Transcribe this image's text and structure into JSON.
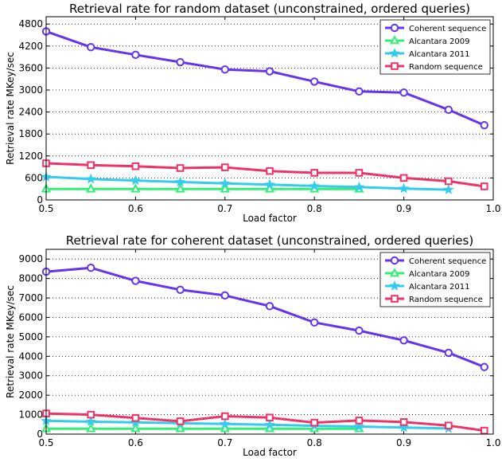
{
  "chart_data": [
    {
      "type": "line",
      "title": "Retrieval rate for random dataset (unconstrained, ordered queries)",
      "xlabel": "Load factor",
      "ylabel": "Retrieval rate MKey/sec",
      "xlim": [
        0.5,
        1.0
      ],
      "ylim": [
        0,
        5000
      ],
      "xticks": [
        0.5,
        0.6,
        0.7,
        0.8,
        0.9,
        1.0
      ],
      "xtick_labels": [
        "0.5",
        "0.6",
        "0.7",
        "0.8",
        "0.9",
        "1.0"
      ],
      "yticks": [
        0,
        600,
        1200,
        1800,
        2400,
        3000,
        3600,
        4200,
        4800
      ],
      "ytick_labels": [
        "0",
        "600",
        "1200",
        "1800",
        "2400",
        "3000",
        "3600",
        "4200",
        "4800"
      ],
      "grid": "horizontal dotted",
      "legend_position": "top-right",
      "series": [
        {
          "name": "Coherent sequence",
          "color": "#6633ee",
          "marker": "circle",
          "x": [
            0.5,
            0.55,
            0.6,
            0.65,
            0.7,
            0.75,
            0.8,
            0.85,
            0.9,
            0.95,
            0.99
          ],
          "y": [
            4600,
            4170,
            3960,
            3760,
            3560,
            3510,
            3230,
            2960,
            2930,
            2460,
            2040
          ]
        },
        {
          "name": "Alcantara 2009",
          "color": "#33ee77",
          "marker": "triangle",
          "x": [
            0.5,
            0.55,
            0.6,
            0.65,
            0.7,
            0.75,
            0.8,
            0.85
          ],
          "y": [
            300,
            300,
            300,
            300,
            300,
            300,
            300,
            300
          ]
        },
        {
          "name": "Alcantara 2011",
          "color": "#33ccee",
          "marker": "star",
          "x": [
            0.5,
            0.55,
            0.6,
            0.65,
            0.7,
            0.75,
            0.8,
            0.85,
            0.9,
            0.95
          ],
          "y": [
            630,
            570,
            530,
            490,
            450,
            420,
            380,
            350,
            310,
            280
          ]
        },
        {
          "name": "Random sequence",
          "color": "#ee3366",
          "marker": "square",
          "x": [
            0.5,
            0.55,
            0.6,
            0.65,
            0.7,
            0.75,
            0.8,
            0.85,
            0.9,
            0.95,
            0.99
          ],
          "y": [
            1000,
            950,
            920,
            870,
            890,
            790,
            740,
            740,
            600,
            510,
            370
          ]
        }
      ]
    },
    {
      "type": "line",
      "title": "Retrieval rate for coherent dataset (unconstrained, ordered queries)",
      "xlabel": "Load factor",
      "ylabel": "Retrieval rate MKey/sec",
      "xlim": [
        0.5,
        1.0
      ],
      "ylim": [
        0,
        9500
      ],
      "xticks": [
        0.5,
        0.6,
        0.7,
        0.8,
        0.9,
        1.0
      ],
      "xtick_labels": [
        "0.5",
        "0.6",
        "0.7",
        "0.8",
        "0.9",
        "1.0"
      ],
      "yticks": [
        0,
        1000,
        2000,
        3000,
        4000,
        5000,
        6000,
        7000,
        8000,
        9000
      ],
      "ytick_labels": [
        "0",
        "1000",
        "2000",
        "3000",
        "4000",
        "5000",
        "6000",
        "7000",
        "8000",
        "9000"
      ],
      "grid": "horizontal dotted",
      "legend_position": "top-right",
      "series": [
        {
          "name": "Coherent sequence",
          "color": "#6633ee",
          "marker": "circle",
          "x": [
            0.5,
            0.55,
            0.6,
            0.65,
            0.7,
            0.75,
            0.8,
            0.85,
            0.9,
            0.95,
            0.99
          ],
          "y": [
            8350,
            8550,
            7880,
            7420,
            7130,
            6580,
            5740,
            5320,
            4820,
            4180,
            3450
          ]
        },
        {
          "name": "Alcantara 2009",
          "color": "#33ee77",
          "marker": "triangle",
          "x": [
            0.5,
            0.55,
            0.6,
            0.65,
            0.7,
            0.75,
            0.8,
            0.85
          ],
          "y": [
            280,
            280,
            280,
            280,
            280,
            280,
            280,
            280
          ]
        },
        {
          "name": "Alcantara 2011",
          "color": "#33ccee",
          "marker": "star",
          "x": [
            0.5,
            0.55,
            0.6,
            0.65,
            0.7,
            0.75,
            0.8,
            0.85,
            0.9,
            0.95
          ],
          "y": [
            680,
            640,
            600,
            560,
            520,
            480,
            430,
            390,
            340,
            290
          ]
        },
        {
          "name": "Random sequence",
          "color": "#ee3366",
          "marker": "square",
          "x": [
            0.5,
            0.55,
            0.6,
            0.65,
            0.7,
            0.75,
            0.8,
            0.85,
            0.9,
            0.95,
            0.99
          ],
          "y": [
            1060,
            1000,
            830,
            660,
            920,
            850,
            590,
            700,
            620,
            440,
            180
          ]
        }
      ]
    }
  ]
}
